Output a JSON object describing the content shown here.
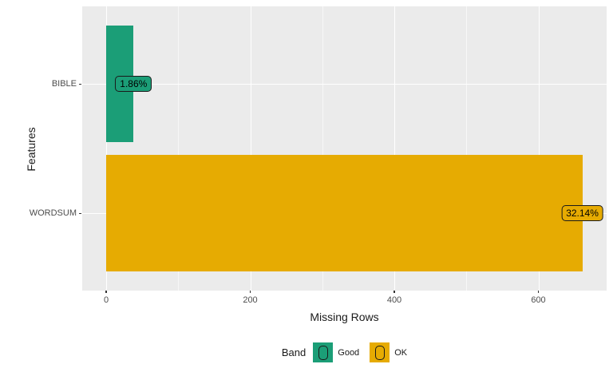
{
  "chart_data": {
    "type": "bar",
    "orientation": "horizontal",
    "categories": [
      "BIBLE",
      "WORDSUM"
    ],
    "values": [
      38,
      661
    ],
    "bar_labels": [
      "1.86%",
      "32.14%"
    ],
    "bands": [
      "Good",
      "OK"
    ],
    "band_colors": {
      "Good": "#1B9E77",
      "OK": "#E6AB02"
    },
    "xlabel": "Missing Rows",
    "ylabel": "Features",
    "xlim": [
      0,
      695
    ],
    "x_ticks": [
      "0",
      "200",
      "400",
      "600"
    ],
    "x_tick_values": [
      0,
      200,
      400,
      600
    ],
    "grid": "white major and minor gridlines on gray panel",
    "panel_background": "#EBEBEB",
    "legend": {
      "title": "Band",
      "position": "bottom",
      "items": [
        {
          "label": "Good",
          "color": "#1B9E77"
        },
        {
          "label": "OK",
          "color": "#E6AB02"
        }
      ]
    }
  }
}
